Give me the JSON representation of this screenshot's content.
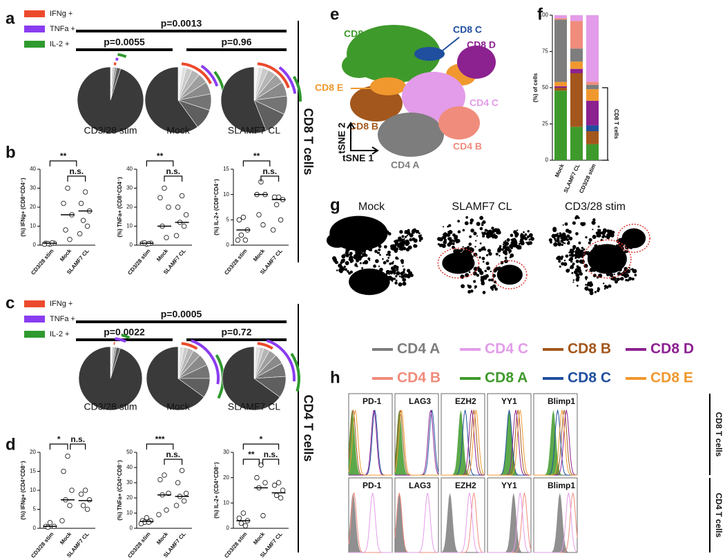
{
  "panel_letters": [
    "a",
    "b",
    "c",
    "d",
    "e",
    "f",
    "g",
    "h"
  ],
  "side_labels": [
    "CD8 T cells",
    "CD4 T cells"
  ],
  "chart_data": [
    {
      "type": "pie",
      "categories": [
        "CD3/28 stim",
        "Mock",
        "SLAMF7 CL"
      ],
      "series": [
        {
          "name": "IFNg +",
          "color": "#ec4a2c",
          "values": [
            1,
            16,
            18
          ]
        },
        {
          "name": "TNFa +",
          "color": "#8a3cf0",
          "values": [
            1,
            10,
            12
          ]
        },
        {
          "name": "IL-2 +",
          "color": "#2f9a2f",
          "values": [
            3,
            10,
            9
          ]
        }
      ],
      "slices": [
        [
          1,
          1,
          1,
          2,
          95
        ],
        [
          2,
          2,
          3,
          4,
          5,
          6,
          8,
          10,
          60
        ],
        [
          2,
          2,
          3,
          4,
          5,
          7,
          9,
          12,
          56
        ]
      ],
      "comparisons": [
        "p=0.0013",
        "p=0.0055",
        "p=0.96"
      ]
    },
    {
      "type": "dot",
      "ylabel": "(%) IFNg+ (CD8⁺CD4⁻)",
      "categories": [
        "CD3/28 stim",
        "Mock",
        "SLAMF7 CL"
      ],
      "points": [
        [
          0.5,
          1,
          1,
          0.8,
          1.2,
          0.5
        ],
        [
          30,
          22,
          16,
          8,
          3
        ],
        [
          28,
          22,
          18,
          13,
          10,
          6
        ]
      ],
      "medians": [
        1,
        16,
        18
      ],
      "ylim": [
        0,
        40
      ],
      "yticks": [
        0,
        10,
        20,
        30,
        40
      ],
      "brackets": [
        "**",
        "n.s."
      ]
    },
    {
      "type": "dot",
      "ylabel": "(%) TNFa+ (CD8⁺CD4⁻)",
      "categories": [
        "CD3/28 stim",
        "Mock",
        "SLAMF7 CL"
      ],
      "points": [
        [
          0.5,
          1,
          1,
          1.2,
          0.8
        ],
        [
          30,
          25,
          20,
          10,
          4
        ],
        [
          26,
          20,
          16,
          12,
          10,
          5
        ]
      ],
      "medians": [
        1,
        10,
        12
      ],
      "ylim": [
        0,
        40
      ],
      "yticks": [
        0,
        10,
        20,
        30,
        40
      ],
      "brackets": [
        "**",
        "n.s."
      ]
    },
    {
      "type": "dot",
      "ylabel": "(%) IL-2+ (CD8⁺CD4⁻)",
      "categories": [
        "CD3/28 stim",
        "Mock",
        "SLAMF7 CL"
      ],
      "points": [
        [
          5.5,
          5,
          3,
          2,
          1,
          1
        ],
        [
          12.5,
          10,
          10,
          6,
          4
        ],
        [
          9.5,
          9.5,
          9,
          8,
          5,
          3
        ]
      ],
      "medians": [
        3,
        10,
        9
      ],
      "ylim": [
        0,
        15
      ],
      "yticks": [
        0,
        5,
        10,
        15
      ],
      "brackets": [
        "**",
        "n.s."
      ]
    },
    {
      "type": "pie",
      "categories": [
        "CD3/28 stim",
        "Mock",
        "SLAMF7 CL"
      ],
      "series": [
        {
          "name": "IFNg +",
          "color": "#ec4a2c",
          "values": [
            0.5,
            7.5,
            7.3
          ]
        },
        {
          "name": "TNFa +",
          "color": "#8a3cf0",
          "values": [
            4.5,
            22,
            21
          ]
        },
        {
          "name": "IL-2 +",
          "color": "#2f9a2f",
          "values": [
            3,
            16,
            14
          ]
        }
      ],
      "slices": [
        [
          1,
          1,
          1,
          2,
          95
        ],
        [
          1,
          2,
          2,
          3,
          4,
          6,
          7,
          10,
          65
        ],
        [
          1,
          2,
          2,
          3,
          4,
          5,
          7,
          11,
          65
        ]
      ],
      "comparisons": [
        "p=0.0005",
        "p=0.0022",
        "p=0.72"
      ]
    },
    {
      "type": "dot",
      "ylabel": "(%) IFNg+ (CD4⁺CD8⁻)",
      "categories": [
        "CD3/28 stim",
        "Mock",
        "SLAMF7 CL"
      ],
      "points": [
        [
          1.5,
          0.5,
          0.5,
          0.3
        ],
        [
          19,
          15,
          10,
          7.5,
          6,
          2
        ],
        [
          10,
          9,
          7.5,
          6,
          5
        ]
      ],
      "medians": [
        0.5,
        7.5,
        7.3
      ],
      "ylim": [
        0,
        20
      ],
      "yticks": [
        0,
        5,
        10,
        15,
        20
      ],
      "brackets": [
        "*",
        "n.s."
      ]
    },
    {
      "type": "dot",
      "ylabel": "(%) TNFa+ (CD4⁺CD8⁻)",
      "categories": [
        "CD3/28 stim",
        "Mock",
        "SLAMF7 CL"
      ],
      "points": [
        [
          7,
          5,
          5,
          4,
          4,
          3
        ],
        [
          35,
          32,
          23,
          22,
          12,
          9
        ],
        [
          38,
          30,
          23,
          21,
          18,
          15
        ]
      ],
      "medians": [
        4.5,
        22,
        21
      ],
      "ylim": [
        0,
        50
      ],
      "yticks": [
        0,
        10,
        20,
        30,
        40,
        50
      ],
      "brackets": [
        "***",
        "n.s."
      ]
    },
    {
      "type": "dot",
      "ylabel": "(%) IL-2+ (CD4⁺CD8⁻)",
      "categories": [
        "CD3/28 stim",
        "Mock",
        "SLAMF7 CL"
      ],
      "points": [
        [
          6,
          4,
          3,
          2,
          1
        ],
        [
          25,
          20,
          18,
          16,
          5
        ],
        [
          18,
          17,
          15,
          13,
          12
        ]
      ],
      "medians": [
        3,
        16,
        14
      ],
      "ylim": [
        0,
        30
      ],
      "yticks": [
        0,
        10,
        20,
        30
      ],
      "brackets": [
        "*",
        "**",
        "n.s."
      ]
    },
    {
      "type": "bar",
      "stacked": true,
      "ylabel": "(%) of cells",
      "annotation": "CD8 T cells",
      "categories": [
        "Mock",
        "SLAMF7 CL",
        "CD3/28 stim"
      ],
      "series": [
        {
          "name": "CD8 A",
          "color": "#3f9a2c",
          "values": [
            48,
            23,
            11
          ]
        },
        {
          "name": "CD8 B",
          "color": "#a3571c",
          "values": [
            2,
            37,
            9
          ]
        },
        {
          "name": "CD8 C",
          "color": "#1f4f9e",
          "values": [
            0,
            0,
            4
          ]
        },
        {
          "name": "CD8 D",
          "color": "#8c2190",
          "values": [
            1,
            3,
            17
          ]
        },
        {
          "name": "CD8 E",
          "color": "#f0982e",
          "values": [
            3,
            5,
            8
          ]
        },
        {
          "name": "CD4 A",
          "color": "#7d7d7d",
          "values": [
            43,
            9,
            3
          ]
        },
        {
          "name": "CD4 B",
          "color": "#f08c7c",
          "values": [
            1,
            19,
            2
          ]
        },
        {
          "name": "CD4 C",
          "color": "#e39ce9",
          "values": [
            2,
            4,
            46
          ]
        }
      ],
      "ylim": [
        0,
        100
      ],
      "yticks": [
        0,
        25,
        50,
        75,
        100
      ]
    }
  ],
  "tsne": {
    "axes": [
      "tSNE 1",
      "tSNE 2"
    ]
  },
  "density": {
    "titles": [
      "Mock",
      "SLAMF7 CL",
      "CD3/28 stim"
    ]
  },
  "histograms": {
    "markers": [
      "PD-1",
      "LAG3",
      "EZH2",
      "YY1",
      "Blimp1"
    ],
    "rows": [
      "CD8 T cells",
      "CD4 T cells"
    ]
  }
}
